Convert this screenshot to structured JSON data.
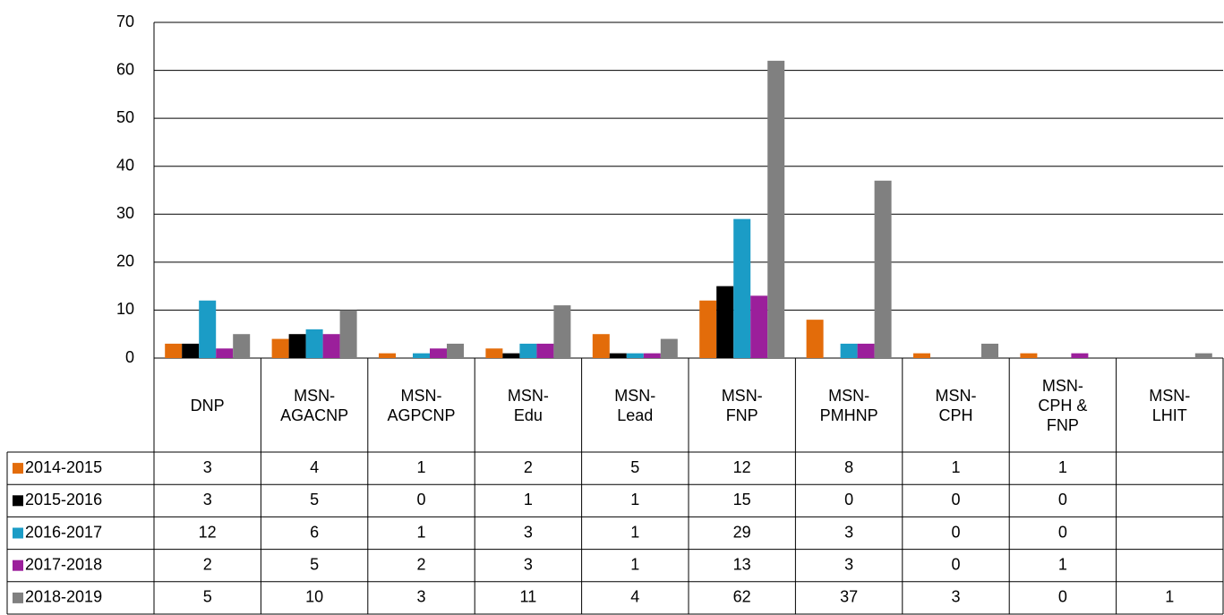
{
  "chart_data": {
    "type": "bar",
    "categories": [
      "DNP",
      "MSN-AGACNP",
      "MSN-AGPCNP",
      "MSN-Edu",
      "MSN-Lead",
      "MSN-FNP",
      "MSN-PMHNP",
      "MSN-CPH",
      "MSN-CPH & FNP",
      "MSN-LHIT"
    ],
    "series": [
      {
        "name": "2014-2015",
        "color": "#e36c0a",
        "values": [
          3,
          4,
          1,
          2,
          5,
          12,
          8,
          1,
          1,
          null
        ]
      },
      {
        "name": "2015-2016",
        "color": "#000000",
        "values": [
          3,
          5,
          0,
          1,
          1,
          15,
          0,
          0,
          0,
          null
        ]
      },
      {
        "name": "2016-2017",
        "color": "#1b9cc6",
        "values": [
          12,
          6,
          1,
          3,
          1,
          29,
          3,
          0,
          0,
          null
        ]
      },
      {
        "name": "2017-2018",
        "color": "#9b1f9b",
        "values": [
          2,
          5,
          2,
          3,
          1,
          13,
          3,
          0,
          1,
          null
        ]
      },
      {
        "name": "2018-2019",
        "color": "#808080",
        "values": [
          5,
          10,
          3,
          11,
          4,
          62,
          37,
          3,
          0,
          1
        ]
      }
    ],
    "ylim": [
      0,
      70
    ],
    "yticks": [
      0,
      10,
      20,
      30,
      40,
      50,
      60,
      70
    ],
    "grid": true
  }
}
